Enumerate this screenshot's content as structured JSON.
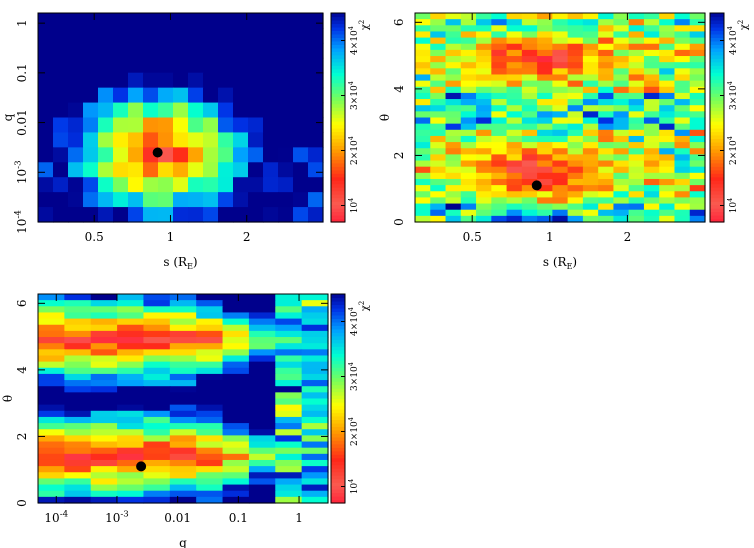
{
  "chart_data": [
    {
      "type": "heatmap",
      "title": "",
      "xlabel": "s (R_E)",
      "ylabel": "q",
      "x_scale": "log",
      "y_scale": "log",
      "xlim": [
        0.3,
        4.0
      ],
      "ylim": [
        0.0001,
        1.6
      ],
      "x_ticks": [
        {
          "value": 0.5,
          "label": "0.5"
        },
        {
          "value": 1,
          "label": "1"
        },
        {
          "value": 2,
          "label": "2"
        }
      ],
      "y_ticks": [
        {
          "value": 0.0001,
          "label": "10^-4"
        },
        {
          "value": 0.001,
          "label": "10^-3"
        },
        {
          "value": 0.01,
          "label": "0.01"
        },
        {
          "value": 0.1,
          "label": "0.1"
        },
        {
          "value": 1,
          "label": "1"
        }
      ],
      "grid": {
        "rows": 14,
        "cols": 19
      },
      "best_fit": {
        "x": 0.89,
        "y": 0.0025
      },
      "colorbar": {
        "label": "χ²",
        "range": [
          7000,
          45000
        ],
        "ticks": [
          {
            "value": 10000,
            "label": "10^4"
          },
          {
            "value": 20000,
            "label": "2×10^4"
          },
          {
            "value": 30000,
            "label": "3×10^4"
          },
          {
            "value": 40000,
            "label": "4×10^4"
          }
        ]
      }
    },
    {
      "type": "heatmap",
      "title": "",
      "xlabel": "s (R_E)",
      "ylabel": "θ",
      "x_scale": "log",
      "y_scale": "linear",
      "xlim": [
        0.3,
        4.0
      ],
      "ylim": [
        0,
        6.28
      ],
      "x_ticks": [
        {
          "value": 0.5,
          "label": "0.5"
        },
        {
          "value": 1,
          "label": "1"
        },
        {
          "value": 2,
          "label": "2"
        }
      ],
      "y_ticks": [
        {
          "value": 0,
          "label": "0"
        },
        {
          "value": 2,
          "label": "2"
        },
        {
          "value": 4,
          "label": "4"
        },
        {
          "value": 6,
          "label": "6"
        }
      ],
      "grid": {
        "rows": 34,
        "cols": 19
      },
      "best_fit": {
        "x": 0.89,
        "y": 1.1
      },
      "colorbar": {
        "label": "χ²",
        "range": [
          7000,
          45000
        ],
        "ticks": [
          {
            "value": 10000,
            "label": "10^4"
          },
          {
            "value": 20000,
            "label": "2×10^4"
          },
          {
            "value": 30000,
            "label": "3×10^4"
          },
          {
            "value": 40000,
            "label": "4×10^4"
          }
        ]
      }
    },
    {
      "type": "heatmap",
      "title": "",
      "xlabel": "q",
      "ylabel": "θ",
      "x_scale": "log",
      "y_scale": "linear",
      "xlim": [
        5e-05,
        3.0
      ],
      "ylim": [
        0,
        6.28
      ],
      "x_ticks": [
        {
          "value": 0.0001,
          "label": "10^-4"
        },
        {
          "value": 0.001,
          "label": "10^-3"
        },
        {
          "value": 0.01,
          "label": "0.01"
        },
        {
          "value": 0.1,
          "label": "0.1"
        },
        {
          "value": 1,
          "label": "1"
        }
      ],
      "y_ticks": [
        {
          "value": 0,
          "label": "0"
        },
        {
          "value": 2,
          "label": "2"
        },
        {
          "value": 4,
          "label": "4"
        },
        {
          "value": 6,
          "label": "6"
        }
      ],
      "grid": {
        "rows": 34,
        "cols": 11
      },
      "best_fit": {
        "x": 0.0025,
        "y": 1.1
      },
      "colorbar": {
        "label": "χ²",
        "range": [
          7000,
          45000
        ],
        "ticks": [
          {
            "value": 10000,
            "label": "10^4"
          },
          {
            "value": 20000,
            "label": "2×10^4"
          },
          {
            "value": 30000,
            "label": "3×10^4"
          },
          {
            "value": 40000,
            "label": "4×10^4"
          }
        ]
      }
    }
  ]
}
